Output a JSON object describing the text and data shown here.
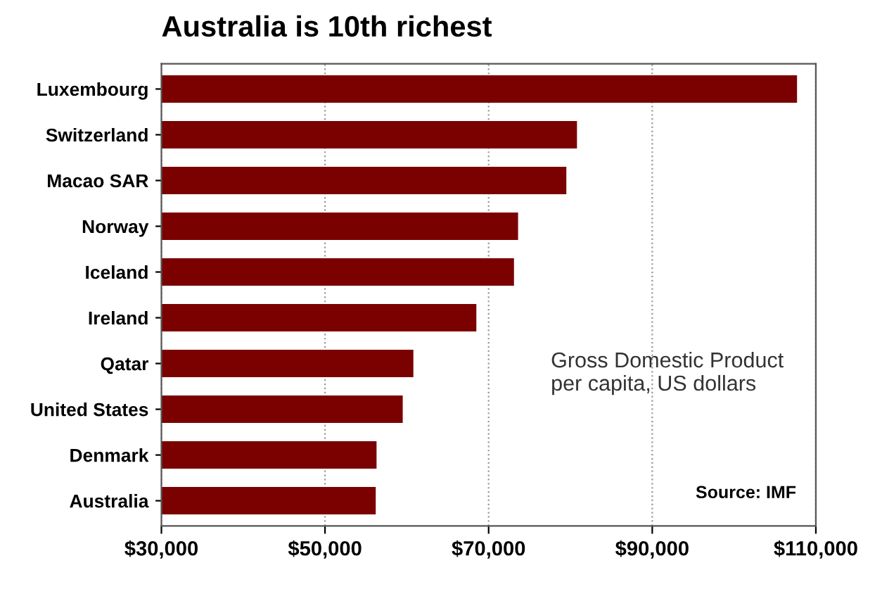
{
  "chart_data": {
    "type": "bar",
    "orientation": "horizontal",
    "title": "Australia is 10th richest",
    "categories": [
      "Luxembourg",
      "Switzerland",
      "Macao SAR",
      "Norway",
      "Iceland",
      "Ireland",
      "Qatar",
      "United States",
      "Denmark",
      "Australia"
    ],
    "values": [
      107700,
      80800,
      79500,
      73600,
      73100,
      68500,
      60800,
      59500,
      56300,
      56200
    ],
    "color": "#7b0000",
    "xlim": [
      30000,
      110000
    ],
    "xticks": [
      {
        "value": 30000,
        "label": "$30,000"
      },
      {
        "value": 50000,
        "label": "$50,000"
      },
      {
        "value": 70000,
        "label": "$70,000"
      },
      {
        "value": 90000,
        "label": "$90,000"
      },
      {
        "value": 110000,
        "label": "$110,000"
      }
    ],
    "grid": "x",
    "annotations": [
      "Gross Domestic Product\nper capita, US dollars",
      "Source: IMF"
    ]
  }
}
